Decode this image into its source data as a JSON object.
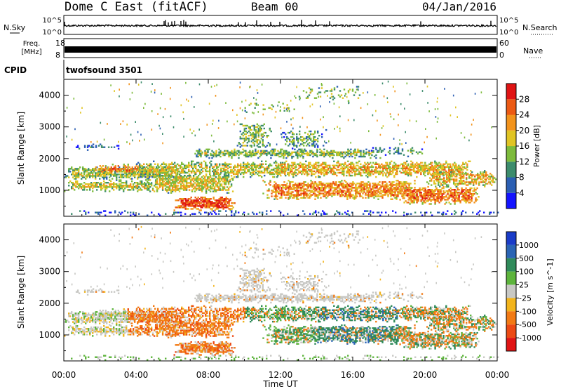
{
  "header": {
    "title": "Dome C East (fitACF)",
    "beam": "Beam 00",
    "date": "04/Jan/2016"
  },
  "nsky_panel": {
    "label": "N.Sky",
    "right_label": "N.Search",
    "left_ticks": [
      "10^5",
      "10^0"
    ],
    "right_ticks": [
      "10^5",
      "10^0"
    ]
  },
  "freq_panel": {
    "label_line1": "Freq.",
    "label_line2": "[MHz]",
    "left_ticks": [
      "18",
      "8"
    ],
    "right_label": "Nave",
    "right_ticks": [
      "60",
      "0"
    ]
  },
  "cpid": {
    "label": "CPID",
    "value": "twofsound 3501"
  },
  "x_axis": {
    "label": "Time UT",
    "ticks": [
      "00:00",
      "04:00",
      "08:00",
      "12:00",
      "16:00",
      "20:00",
      "00:00"
    ]
  },
  "chart_data": [
    {
      "type": "heatmap",
      "name": "power",
      "ylabel": "Slant Range [km]",
      "yticks": [
        1000,
        2000,
        3000,
        4000
      ],
      "ylim": [
        180,
        4500
      ],
      "xlim_hours": [
        0,
        24
      ],
      "colorbar_label": "Power [dB]",
      "colorbar_ticks": [
        4,
        8,
        12,
        16,
        20,
        24,
        28
      ],
      "colorbar_range": [
        0,
        32
      ],
      "colors": [
        "#1414ff",
        "#2b5fb3",
        "#3c8c6c",
        "#7dbb3c",
        "#e0c424",
        "#f2931c",
        "#ec5a14",
        "#e01414"
      ]
    },
    {
      "type": "heatmap",
      "name": "velocity",
      "ylabel": "Slant Range [km]",
      "yticks": [
        1000,
        2000,
        3000,
        4000
      ],
      "ylim": [
        180,
        4500
      ],
      "xlim_hours": [
        0,
        24
      ],
      "colorbar_label": "Velocity [m s^-1]",
      "colorbar_ticks": [
        "1000",
        "500",
        "100",
        "25",
        "-25",
        "-100",
        "-500",
        "-1000"
      ],
      "colors": [
        "#1a3cc8",
        "#2a64b4",
        "#2f8a5a",
        "#5db43c",
        "#c8c8c4",
        "#f2b41c",
        "#f27a14",
        "#ec4a14",
        "#e01414"
      ]
    }
  ]
}
